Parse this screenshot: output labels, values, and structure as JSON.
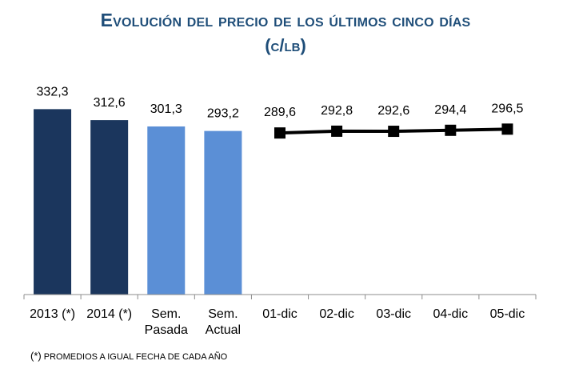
{
  "title_line1": "Evolución del precio de los últimos cinco días",
  "title_line2": "(c/lb)",
  "footnote": {
    "marker": "(*)",
    "text": "PROMEDIOS A IGUAL FECHA DE CADA AÑO"
  },
  "chart_data": {
    "type": "bar+line",
    "title": "Evolución del precio de los últimos cinco días (c/lb)",
    "ylim": [
      0,
      340
    ],
    "grid": false,
    "bars": [
      {
        "label": [
          "2013 (*)"
        ],
        "value": 332.3,
        "value_label": "332,3",
        "color": "#1b365d"
      },
      {
        "label": [
          "2014 (*)"
        ],
        "value": 312.6,
        "value_label": "312,6",
        "color": "#1b365d"
      },
      {
        "label": [
          "Sem.",
          "Pasada"
        ],
        "value": 301.3,
        "value_label": "301,3",
        "color": "#5b8fd6"
      },
      {
        "label": [
          "Sem.",
          "Actual"
        ],
        "value": 293.2,
        "value_label": "293,2",
        "color": "#5b8fd6"
      }
    ],
    "line": {
      "color": "#000000",
      "points": [
        {
          "label": "01-dic",
          "value": 289.6,
          "value_label": "289,6"
        },
        {
          "label": "02-dic",
          "value": 292.8,
          "value_label": "292,8"
        },
        {
          "label": "03-dic",
          "value": 292.6,
          "value_label": "292,6"
        },
        {
          "label": "04-dic",
          "value": 294.4,
          "value_label": "294,4"
        },
        {
          "label": "05-dic",
          "value": 296.5,
          "value_label": "296,5"
        }
      ]
    }
  }
}
